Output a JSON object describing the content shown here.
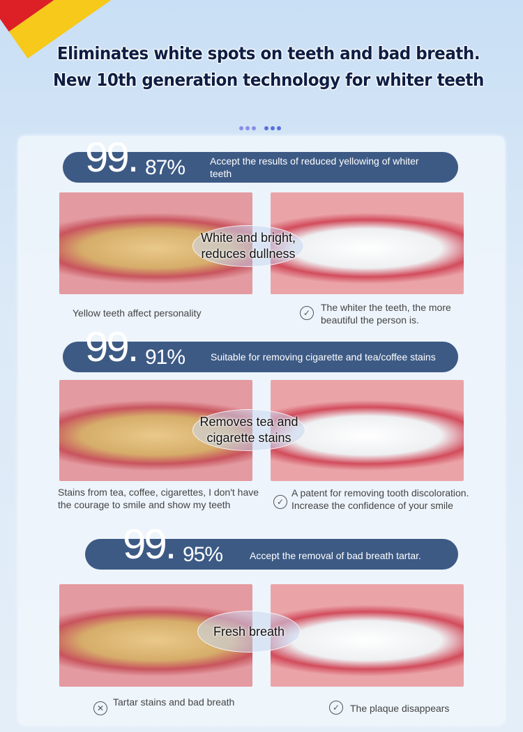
{
  "title": "Eliminates white spots on teeth and bad breath. New 10th generation technology for whiter teeth",
  "colors": {
    "banner": "#3d5a85",
    "title": "#0e1e45",
    "flag": [
      "#1a1a1a",
      "#dd1f26",
      "#f6c91a"
    ]
  },
  "sections": [
    {
      "big": "99.",
      "pct": "87%",
      "text": "Accept the results of reduced yellowing of whiter teeth",
      "overlay": "White and bright, reduces dullness",
      "left_caption": "Yellow teeth affect personality",
      "right_caption": "The whiter the teeth, the more beautiful the person is.",
      "right_icon": "check-circle-icon"
    },
    {
      "big": "99.",
      "pct": "91%",
      "text": "Suitable for removing cigarette and tea/coffee stains",
      "overlay": "Removes tea and cigarette stains",
      "left_caption": "Stains from tea, coffee, cigarettes, I don't have the courage to smile and show my teeth",
      "right_caption": "A patent for removing tooth discoloration. Increase the confidence of your smile",
      "right_icon": "check-circle-icon"
    },
    {
      "big": "99.",
      "pct": "95%",
      "text": "Accept the removal of bad breath tartar.",
      "overlay": "Fresh breath",
      "left_caption": "Tartar stains and bad breath",
      "left_icon": "x-circle-icon",
      "right_caption": "The plaque disappears",
      "right_icon": "check-circle-icon"
    }
  ]
}
